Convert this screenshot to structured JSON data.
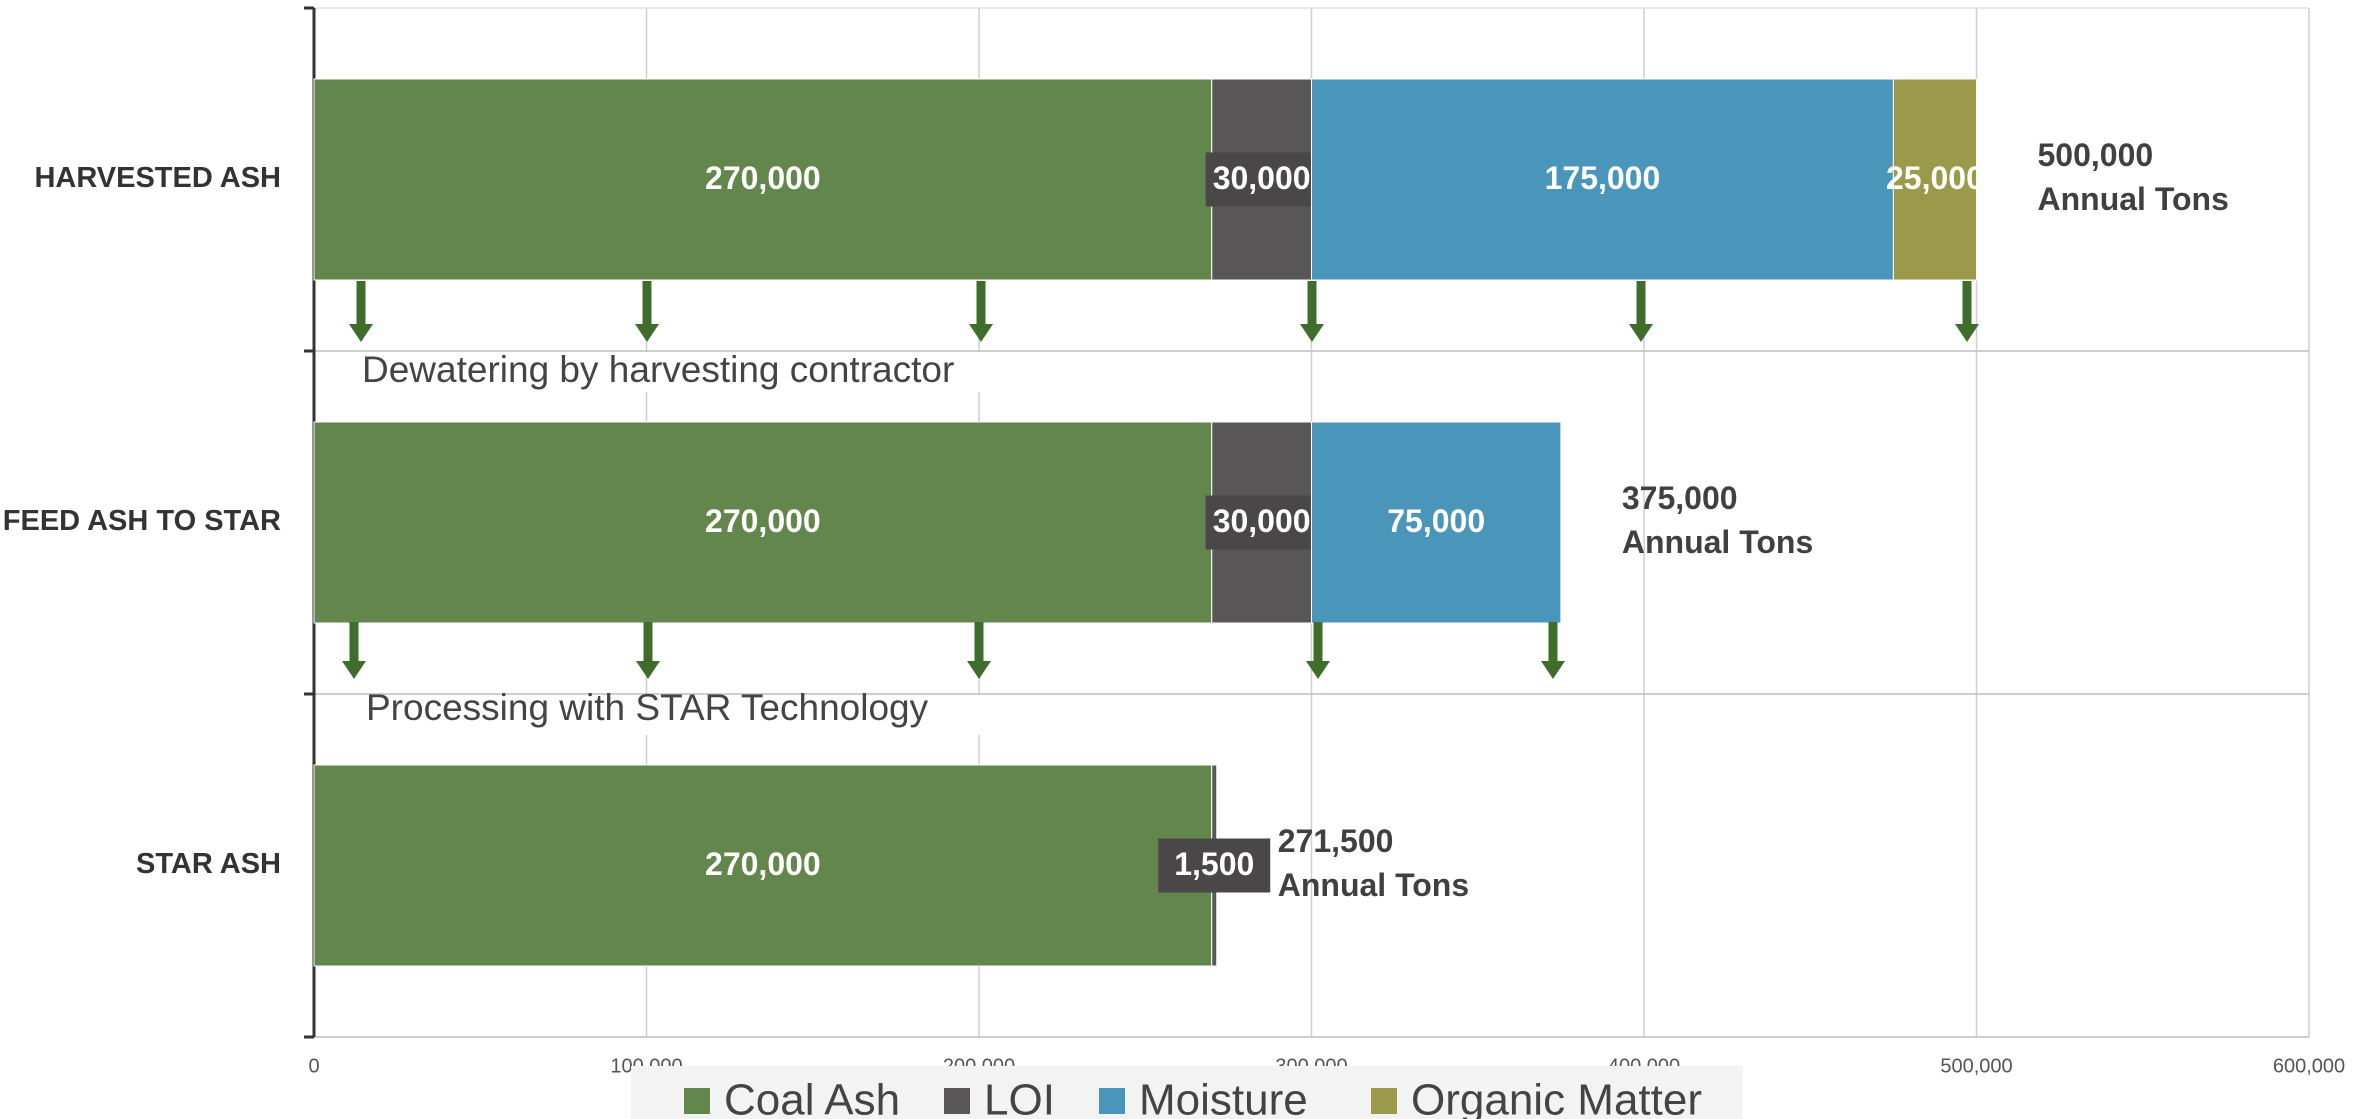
{
  "chart_data": {
    "type": "stacked-horizontal-bar",
    "categories": [
      "HARVESTED ASH",
      "FEED ASH TO STAR",
      "STAR ASH"
    ],
    "series": [
      {
        "name": "Coal Ash",
        "color": "#62864b",
        "values": [
          270000,
          270000,
          270000
        ],
        "value_labels": [
          "270,000",
          "270,000",
          "270,000"
        ]
      },
      {
        "name": "LOI",
        "color": "#595657",
        "values": [
          30000,
          30000,
          1500
        ],
        "value_labels": [
          "30,000",
          "30,000",
          "1,500"
        ]
      },
      {
        "name": "Moisture",
        "color": "#4a96bb",
        "values": [
          175000,
          75000,
          null
        ],
        "value_labels": [
          "175,000",
          "75,000",
          null
        ]
      },
      {
        "name": "Organic Matter",
        "color": "#9a9a4a",
        "values": [
          25000,
          null,
          null
        ],
        "value_labels": [
          "25,000",
          null,
          null
        ]
      }
    ],
    "totals": {
      "values": [
        500000,
        375000,
        271500
      ],
      "value_labels": [
        "500,000",
        "375,000",
        "271,500"
      ],
      "unit": "Annual Tons"
    },
    "annotations": [
      "Dewatering by  harvesting contractor",
      "Processing with STAR Technology"
    ],
    "xlim": [
      0,
      600000
    ],
    "xticks": [
      0,
      {
        "value": 100000,
        "label": "100,000"
      },
      {
        "value": 200000,
        "label": "200,000"
      },
      {
        "value": 300000,
        "label": "300,000"
      },
      {
        "value": 400000,
        "label": "400,000"
      },
      {
        "value": 500000,
        "label": "500,000"
      },
      {
        "value": 600000,
        "label": "600,000"
      }
    ],
    "grid": true,
    "legend": "bottom"
  }
}
